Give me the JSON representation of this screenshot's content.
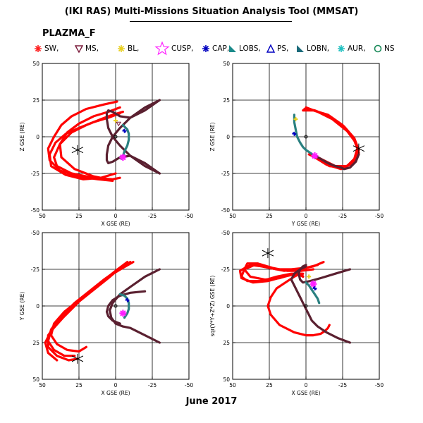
{
  "title": "(IKI RAS) Multi-Missions Situation Analysis Tool (MMSAT)",
  "satellite": "PLAZMA_F",
  "date_label": "June 2017",
  "legend": [
    {
      "label": "SW,",
      "icon": "star-small",
      "color": "#ff2020"
    },
    {
      "label": "MS,",
      "icon": "triangle-down",
      "color": "#7a1a3a"
    },
    {
      "label": "BL,",
      "icon": "star-small",
      "color": "#e8d020"
    },
    {
      "label": "CUSP,",
      "icon": "star-large",
      "color": "#ff20ff"
    },
    {
      "label": "CAP,",
      "icon": "star-small",
      "color": "#0000c0"
    },
    {
      "label": "LOBS,",
      "icon": "flag",
      "color": "#1a8a8a"
    },
    {
      "label": "PS,",
      "icon": "triangle-up",
      "color": "#0000c0"
    },
    {
      "label": "LOBN,",
      "icon": "flag",
      "color": "#1a6a7a"
    },
    {
      "label": "AUR,",
      "icon": "asterisk",
      "color": "#20c0c0"
    },
    {
      "label": "NS",
      "icon": "circle",
      "color": "#1a8a5a"
    }
  ],
  "colors": {
    "magnetosheath_orbit": "#ff0000",
    "magnetosphere_orbit": "#5a2030",
    "lobe": "#2a8080",
    "cusp": "#ff20ff",
    "cap": "#0000c0"
  },
  "chart_data": [
    {
      "type": "line",
      "xlabel": "X GSE (RE)",
      "ylabel": "Z GSE (RE)",
      "xlim": [
        50,
        -50
      ],
      "ylim": [
        -50,
        50
      ],
      "xticks": [
        50,
        25,
        0,
        -25,
        -50
      ],
      "yticks": [
        "50",
        "25",
        "0",
        "-25",
        "-50"
      ],
      "grid": true,
      "series": [
        {
          "color": "#ff0000",
          "x": [
            -5,
            2,
            10,
            20,
            30,
            38,
            42,
            40,
            30,
            15,
            2,
            -3
          ],
          "y": [
            17,
            15,
            12,
            8,
            3,
            -5,
            -14,
            -20,
            -25,
            -28,
            -29,
            -28
          ]
        },
        {
          "color": "#ff0000",
          "x": [
            -3,
            5,
            15,
            25,
            33,
            38,
            37,
            28,
            15,
            5
          ],
          "y": [
            20,
            17,
            14,
            9,
            3,
            -5,
            -14,
            -22,
            -27,
            -29
          ]
        },
        {
          "color": "#ff0000",
          "x": [
            -1,
            8,
            20,
            30,
            37,
            42,
            46,
            45,
            38,
            26,
            12,
            2
          ],
          "y": [
            24,
            22,
            19,
            14,
            8,
            0,
            -8,
            -16,
            -23,
            -27,
            -29,
            -30
          ]
        },
        {
          "color": "#ff0000",
          "x": [
            -3,
            5,
            15,
            25,
            34,
            41,
            45,
            44,
            34,
            22,
            10,
            0
          ],
          "y": [
            16,
            13,
            10,
            6,
            2,
            -4,
            -12,
            -20,
            -26,
            -29,
            -28,
            -25
          ]
        },
        {
          "color": "#5a2030",
          "x": [
            -30,
            -20,
            -10,
            -3,
            2,
            5,
            6,
            6,
            5,
            2,
            -3,
            -10,
            -20,
            -30
          ],
          "y": [
            25,
            20,
            13,
            6,
            0,
            -6,
            -12,
            -16,
            -18,
            -17,
            -14,
            -13,
            -18,
            -25
          ]
        },
        {
          "color": "#5a2030",
          "x": [
            -30,
            -20,
            -10,
            -3,
            2,
            5,
            6,
            6,
            5,
            2,
            -3,
            -10,
            -20,
            -30
          ],
          "y": [
            -25,
            -20,
            -13,
            -6,
            0,
            6,
            12,
            16,
            18,
            17,
            14,
            13,
            18,
            25
          ]
        },
        {
          "color": "#2a8080",
          "x": [
            -5,
            -8,
            -9,
            -9,
            -8,
            -6,
            -5,
            -4
          ],
          "y": [
            8,
            5,
            2,
            -2,
            -6,
            -10,
            -13,
            -15
          ]
        }
      ],
      "markers": [
        {
          "name": "spacecraft",
          "x": 26,
          "y": -9
        },
        {
          "name": "cusp",
          "x": -5,
          "y": -14
        },
        {
          "name": "bl",
          "x": 0,
          "y": 11
        },
        {
          "name": "cap",
          "x": -6,
          "y": 4
        },
        {
          "name": "ms",
          "x": -2,
          "y": 9
        },
        {
          "name": "earth",
          "x": 0,
          "y": 0
        }
      ]
    },
    {
      "type": "line",
      "xlabel": "Y GSE (RE)",
      "ylabel": "Z GSE (RE)",
      "xlim": [
        50,
        -50
      ],
      "ylim": [
        -50,
        50
      ],
      "xticks": [
        50,
        25,
        0,
        -25,
        -50
      ],
      "yticks": [
        "50",
        "25",
        "0",
        "-25",
        "-50"
      ],
      "grid": true,
      "series": [
        {
          "color": "#ff0000",
          "x": [
            2,
            -5,
            -15,
            -25,
            -32,
            -35,
            -33,
            -28,
            -20,
            -12,
            -6,
            -3
          ],
          "y": [
            18,
            18,
            15,
            8,
            0,
            -8,
            -15,
            -20,
            -20,
            -16,
            -13,
            -12
          ]
        },
        {
          "color": "#ff0000",
          "x": [
            1,
            -6,
            -16,
            -26,
            -33,
            -36,
            -34,
            -26,
            -16,
            -8,
            -4
          ],
          "y": [
            19,
            18,
            14,
            7,
            -1,
            -9,
            -16,
            -21,
            -20,
            -15,
            -12
          ]
        },
        {
          "color": "#ff0000",
          "x": [
            0,
            -8,
            -18,
            -28,
            -34,
            -36,
            -32,
            -24,
            -14,
            -6,
            -2
          ],
          "y": [
            20,
            17,
            12,
            4,
            -4,
            -11,
            -18,
            -22,
            -19,
            -14,
            -12
          ]
        },
        {
          "color": "#5a2030",
          "x": [
            -6,
            -10,
            -15,
            -20,
            -24,
            -26,
            -30,
            -34,
            -36
          ],
          "y": [
            -13,
            -15,
            -18,
            -20,
            -21,
            -22,
            -21,
            -17,
            -12
          ]
        },
        {
          "color": "#2a8080",
          "x": [
            8,
            8,
            7,
            6,
            4,
            2,
            0,
            -3,
            -6
          ],
          "y": [
            15,
            10,
            5,
            0,
            -4,
            -7,
            -9,
            -11,
            -13
          ]
        }
      ],
      "markers": [
        {
          "name": "spacecraft",
          "x": -36,
          "y": -8
        },
        {
          "name": "cusp",
          "x": -6,
          "y": -13
        },
        {
          "name": "bl",
          "x": 7,
          "y": 12
        },
        {
          "name": "cap",
          "x": 8,
          "y": 2
        },
        {
          "name": "earth",
          "x": 0,
          "y": 0
        }
      ]
    },
    {
      "type": "line",
      "xlabel": "X GSE (RE)",
      "ylabel": "Y GSE (RE)",
      "xlim": [
        50,
        -50
      ],
      "ylim": [
        -50,
        50
      ],
      "xticks": [
        50,
        25,
        0,
        -25,
        -50
      ],
      "yticks": [
        "-50",
        "-25",
        "0",
        "25",
        "50"
      ],
      "grid": true,
      "series": [
        {
          "color": "#ff0000",
          "x": [
            -12,
            -5,
            5,
            15,
            25,
            35,
            42,
            44,
            40,
            33,
            25,
            20
          ],
          "y": [
            -30,
            -26,
            -20,
            -12,
            -4,
            4,
            12,
            20,
            26,
            30,
            31,
            28
          ]
        },
        {
          "color": "#ff0000",
          "x": [
            -10,
            -2,
            8,
            18,
            28,
            38,
            44,
            46,
            42,
            35,
            28
          ],
          "y": [
            -30,
            -25,
            -18,
            -10,
            -2,
            8,
            16,
            24,
            30,
            34,
            34
          ]
        },
        {
          "color": "#ff0000",
          "x": [
            -8,
            0,
            10,
            20,
            30,
            40,
            46,
            46,
            40,
            32,
            26
          ],
          "y": [
            -30,
            -24,
            -16,
            -8,
            2,
            12,
            20,
            28,
            34,
            37,
            36
          ]
        },
        {
          "color": "#ff0000",
          "x": [
            -2,
            5,
            15,
            25,
            35,
            44,
            48,
            46,
            40
          ],
          "y": [
            -25,
            -19,
            -11,
            -3,
            7,
            17,
            25,
            32,
            37
          ]
        },
        {
          "color": "#5a2030",
          "x": [
            -30,
            -20,
            -10,
            -3,
            2,
            4,
            3,
            0,
            -5,
            -10,
            -20,
            -30
          ],
          "y": [
            -25,
            -20,
            -13,
            -8,
            -2,
            3,
            8,
            12,
            14,
            15,
            20,
            25
          ]
        },
        {
          "color": "#5a2030",
          "x": [
            -20,
            -10,
            -3,
            2,
            5,
            6,
            5,
            2,
            -3
          ],
          "y": [
            -10,
            -9,
            -7,
            -4,
            0,
            4,
            7,
            10,
            12
          ]
        },
        {
          "color": "#2a8080",
          "x": [
            -3,
            -6,
            -8,
            -9,
            -9,
            -8,
            -6
          ],
          "y": [
            -8,
            -7,
            -5,
            -2,
            2,
            5,
            8
          ]
        }
      ],
      "markers": [
        {
          "name": "spacecraft",
          "x": 26,
          "y": 36
        },
        {
          "name": "cusp",
          "x": -5,
          "y": 5
        },
        {
          "name": "cap",
          "x": -8,
          "y": -4
        },
        {
          "name": "earth",
          "x": 0,
          "y": 0
        }
      ]
    },
    {
      "type": "line",
      "xlabel": "X GSE (RE)",
      "ylabel": "sqr(Y*Y+Z*Z) GSE (RE)",
      "xlim": [
        50,
        -50
      ],
      "ylim": [
        -50,
        50
      ],
      "xticks": [
        50,
        25,
        0,
        -25,
        -50
      ],
      "yticks": [
        "-50",
        "-25",
        "0",
        "25",
        "50"
      ],
      "grid": true,
      "series": [
        {
          "color": "#ff0000",
          "x": [
            -12,
            -5,
            5,
            15,
            25,
            35,
            42,
            44,
            40,
            30,
            20,
            10,
            3,
            2
          ],
          "y": [
            -30,
            -27,
            -25,
            -24,
            -26,
            -28,
            -25,
            -20,
            -17,
            -17,
            -20,
            -22,
            -22,
            -20
          ]
        },
        {
          "color": "#ff0000",
          "x": [
            -8,
            0,
            10,
            20,
            30,
            38,
            45,
            44,
            36,
            26,
            15,
            6,
            2
          ],
          "y": [
            -28,
            -26,
            -25,
            -25,
            -27,
            -28,
            -24,
            -19,
            -16,
            -17,
            -20,
            -22,
            -20
          ]
        },
        {
          "color": "#ff0000",
          "x": [
            -5,
            3,
            13,
            23,
            33,
            40,
            42,
            38,
            28,
            18,
            8,
            2
          ],
          "y": [
            -25,
            -24,
            -24,
            -26,
            -29,
            -29,
            -25,
            -20,
            -18,
            -19,
            -22,
            -22
          ]
        },
        {
          "color": "#ff0000",
          "x": [
            4,
            8,
            14,
            20,
            24,
            26,
            24,
            18,
            8,
            0,
            -5,
            -10,
            -13,
            -15,
            -16
          ],
          "y": [
            -22,
            -20,
            -16,
            -12,
            -6,
            0,
            6,
            13,
            18,
            20,
            20,
            19,
            17,
            15,
            13
          ]
        },
        {
          "color": "#5a2030",
          "x": [
            -30,
            -20,
            -10,
            -3,
            2,
            4,
            5,
            4,
            2,
            0
          ],
          "y": [
            -25,
            -22,
            -19,
            -17,
            -16,
            -18,
            -22,
            -25,
            -27,
            -28
          ]
        },
        {
          "color": "#5a2030",
          "x": [
            -30,
            -22,
            -14,
            -8,
            -4,
            -2,
            0,
            2,
            4,
            6,
            8,
            10,
            8,
            4,
            0
          ],
          "y": [
            25,
            22,
            18,
            14,
            10,
            6,
            2,
            -2,
            -6,
            -10,
            -14,
            -18,
            -22,
            -25,
            -27
          ]
        },
        {
          "color": "#2a8080",
          "x": [
            0,
            -2,
            -4,
            -6,
            -8,
            -9
          ],
          "y": [
            -16,
            -14,
            -11,
            -8,
            -5,
            -2
          ]
        }
      ],
      "markers": [
        {
          "name": "spacecraft",
          "x": 26,
          "y": -36
        },
        {
          "name": "cusp",
          "x": -5,
          "y": -15
        },
        {
          "name": "bl",
          "x": -2,
          "y": -20
        },
        {
          "name": "cap",
          "x": -6,
          "y": -12
        },
        {
          "name": "earth",
          "x": 0,
          "y": 0
        }
      ]
    }
  ]
}
